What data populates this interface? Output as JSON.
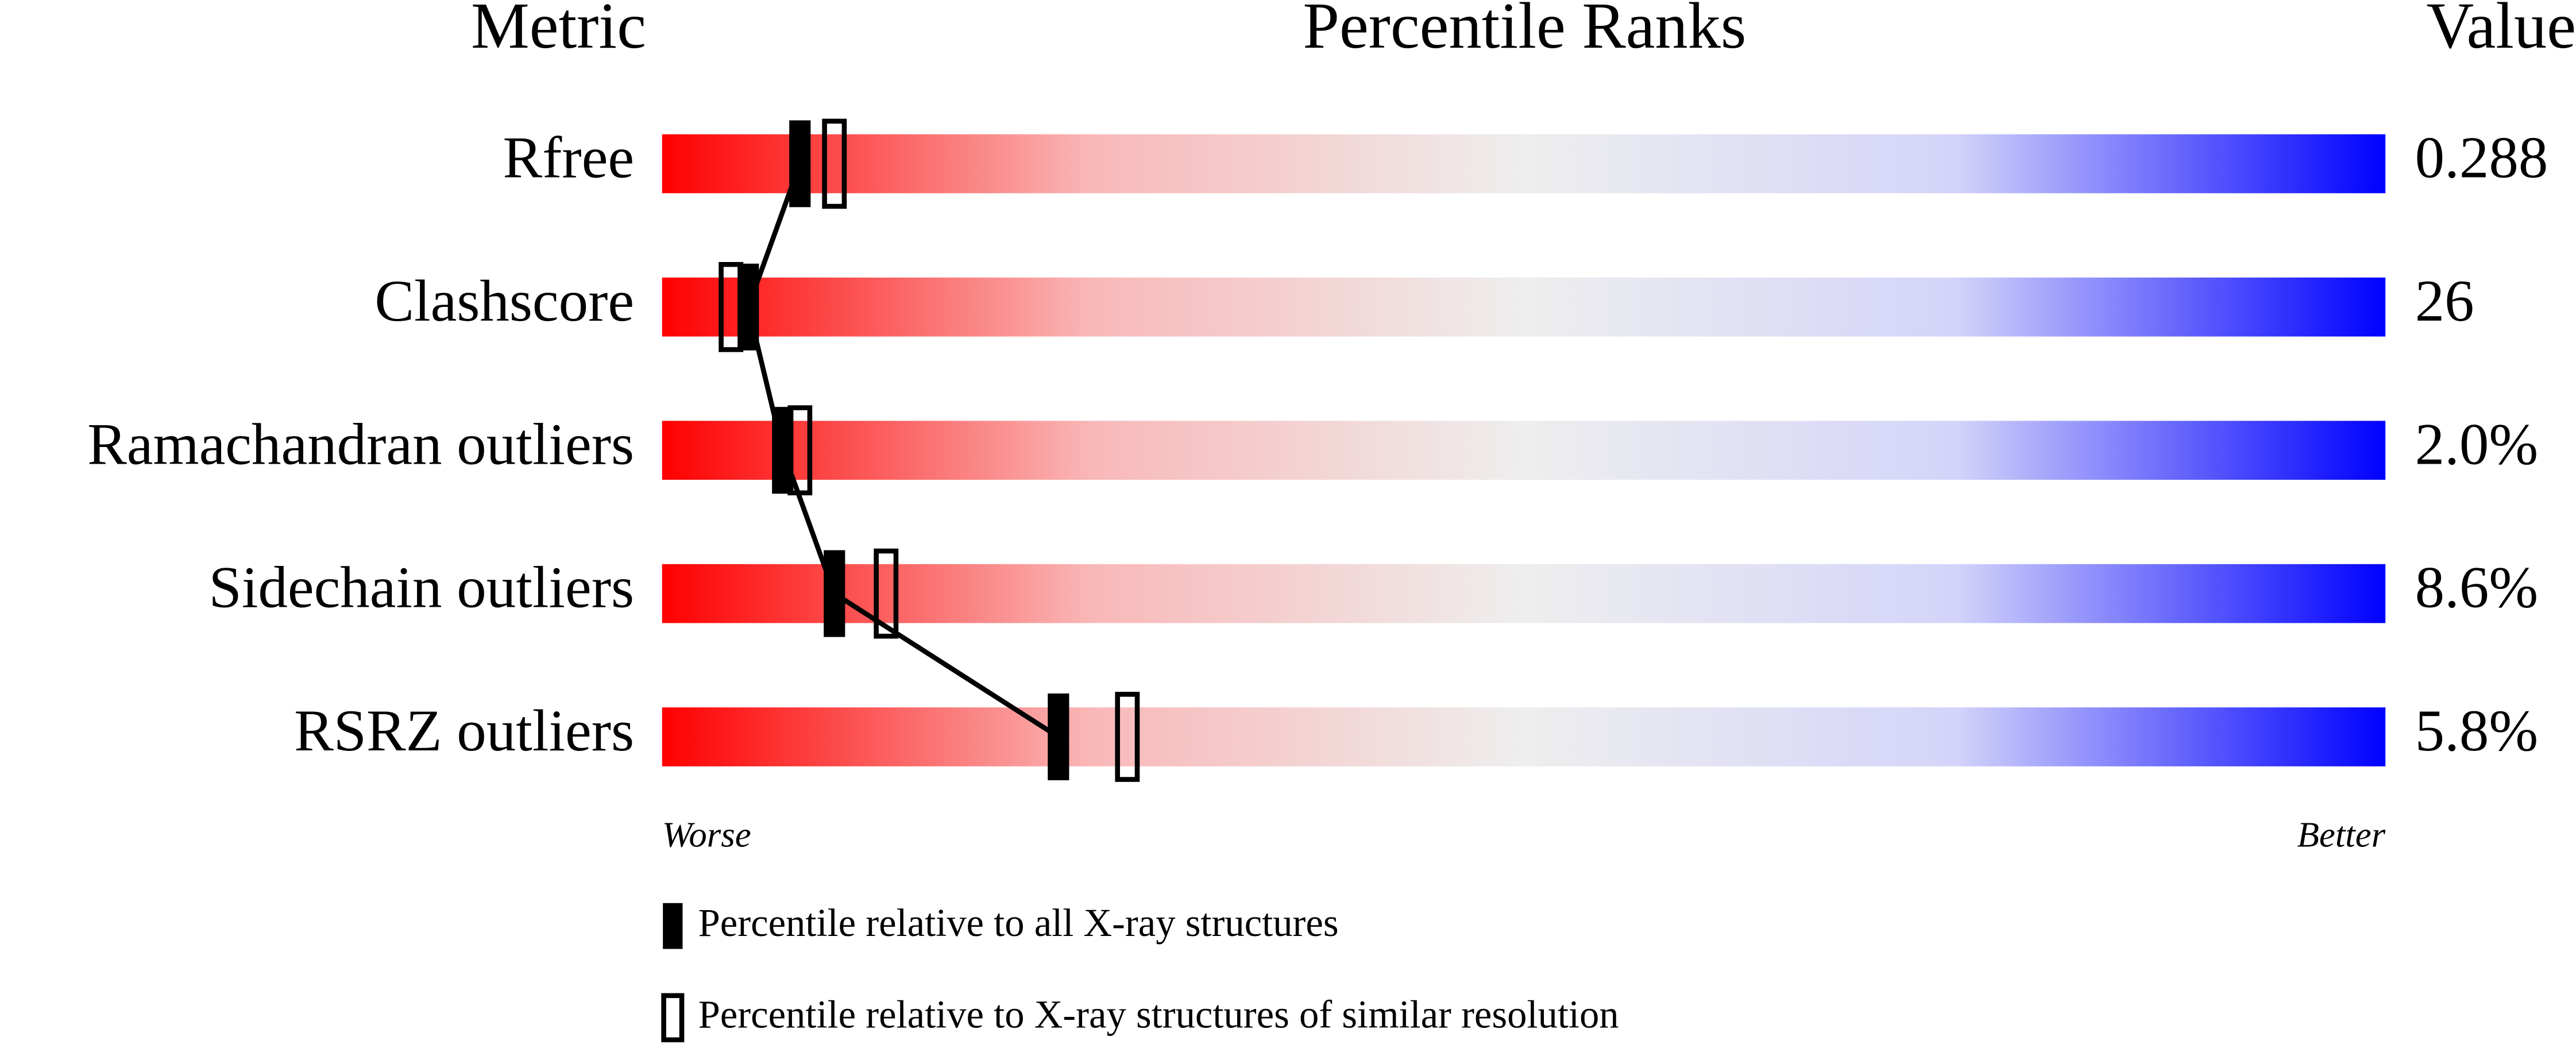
{
  "chart_data": {
    "type": "percentile",
    "title": "Percentile Ranks",
    "label_header": "Metric",
    "value_header": "Value",
    "categories": [
      "Rfree",
      "Clashscore",
      "Ramachandran outliers",
      "Sidechain outliers",
      "RSRZ outliers"
    ],
    "metric_values": [
      "0.288",
      "26",
      "2.0%",
      "8.6%",
      "5.8%"
    ],
    "series": [
      {
        "name": "Percentile relative to all X-ray structures",
        "color": "#000000",
        "filled": true,
        "values": [
          8,
          5,
          7,
          10,
          23
        ]
      },
      {
        "name": "Percentile relative to X-ray structures of similar resolution",
        "color": "#000000",
        "filled": false,
        "values": [
          10,
          4,
          8,
          13,
          27
        ]
      }
    ],
    "xlim": [
      0,
      100
    ],
    "low_label": "Worse",
    "high_label": "Better"
  }
}
